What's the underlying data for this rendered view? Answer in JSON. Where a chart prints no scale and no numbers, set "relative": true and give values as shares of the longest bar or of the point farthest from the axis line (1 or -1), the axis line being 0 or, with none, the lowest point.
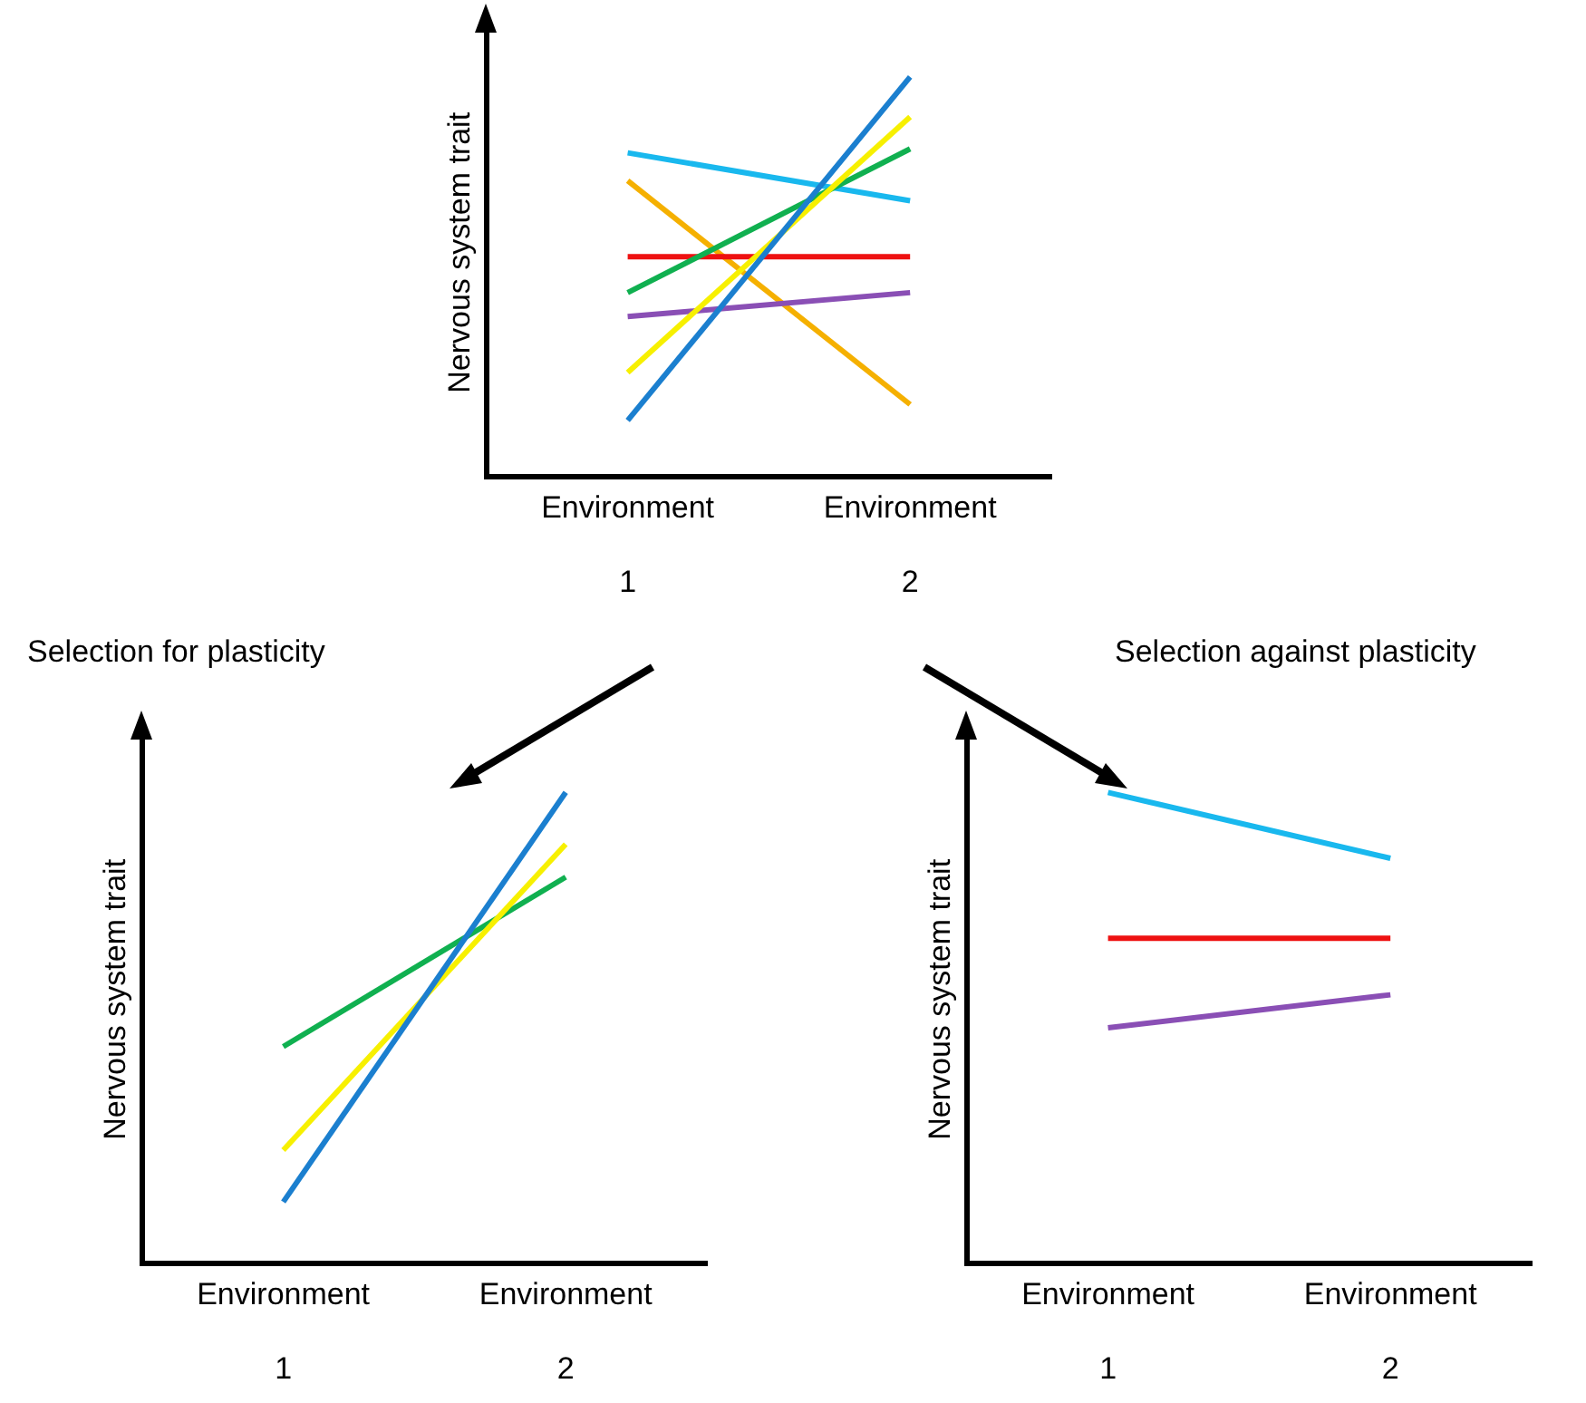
{
  "chart_data": [
    {
      "type": "line",
      "relative": true,
      "ylabel": "Nervous system trait",
      "categories": [
        "Environment 1",
        "Environment 2"
      ],
      "legend": false,
      "grid": false,
      "marker": "none",
      "series": [
        {
          "color": "#1b7fcf",
          "values": [
            0.14,
            1
          ]
        },
        {
          "color": "#f7f000",
          "values": [
            0.26,
            0.9
          ]
        },
        {
          "color": "#10b050",
          "values": [
            0.46,
            0.82
          ]
        },
        {
          "color": "#ee1111",
          "values": [
            0.55,
            0.55
          ]
        },
        {
          "color": "#8a4fb5",
          "values": [
            0.4,
            0.46
          ]
        },
        {
          "color": "#19b8ee",
          "values": [
            0.81,
            0.69
          ]
        },
        {
          "color": "#f5b000",
          "values": [
            0.74,
            0.18
          ]
        }
      ]
    },
    {
      "type": "line",
      "relative": true,
      "title": "Selection for plasticity",
      "ylabel": "Nervous system trait",
      "categories": [
        "Environment 1",
        "Environment 2"
      ],
      "legend": false,
      "grid": false,
      "marker": "none",
      "series": [
        {
          "color": "#1b7fcf",
          "values": [
            0.13,
            1
          ]
        },
        {
          "color": "#f7f000",
          "values": [
            0.24,
            0.89
          ]
        },
        {
          "color": "#10b050",
          "values": [
            0.46,
            0.82
          ]
        }
      ]
    },
    {
      "type": "line",
      "relative": true,
      "title": "Selection against plasticity",
      "ylabel": "Nervous system trait",
      "categories": [
        "Environment 1",
        "Environment 2"
      ],
      "legend": false,
      "grid": false,
      "marker": "none",
      "series": [
        {
          "color": "#19b8ee",
          "values": [
            1,
            0.86
          ]
        },
        {
          "color": "#ee1111",
          "values": [
            0.69,
            0.69
          ]
        },
        {
          "color": "#8a4fb5",
          "values": [
            0.5,
            0.57
          ]
        }
      ]
    }
  ]
}
